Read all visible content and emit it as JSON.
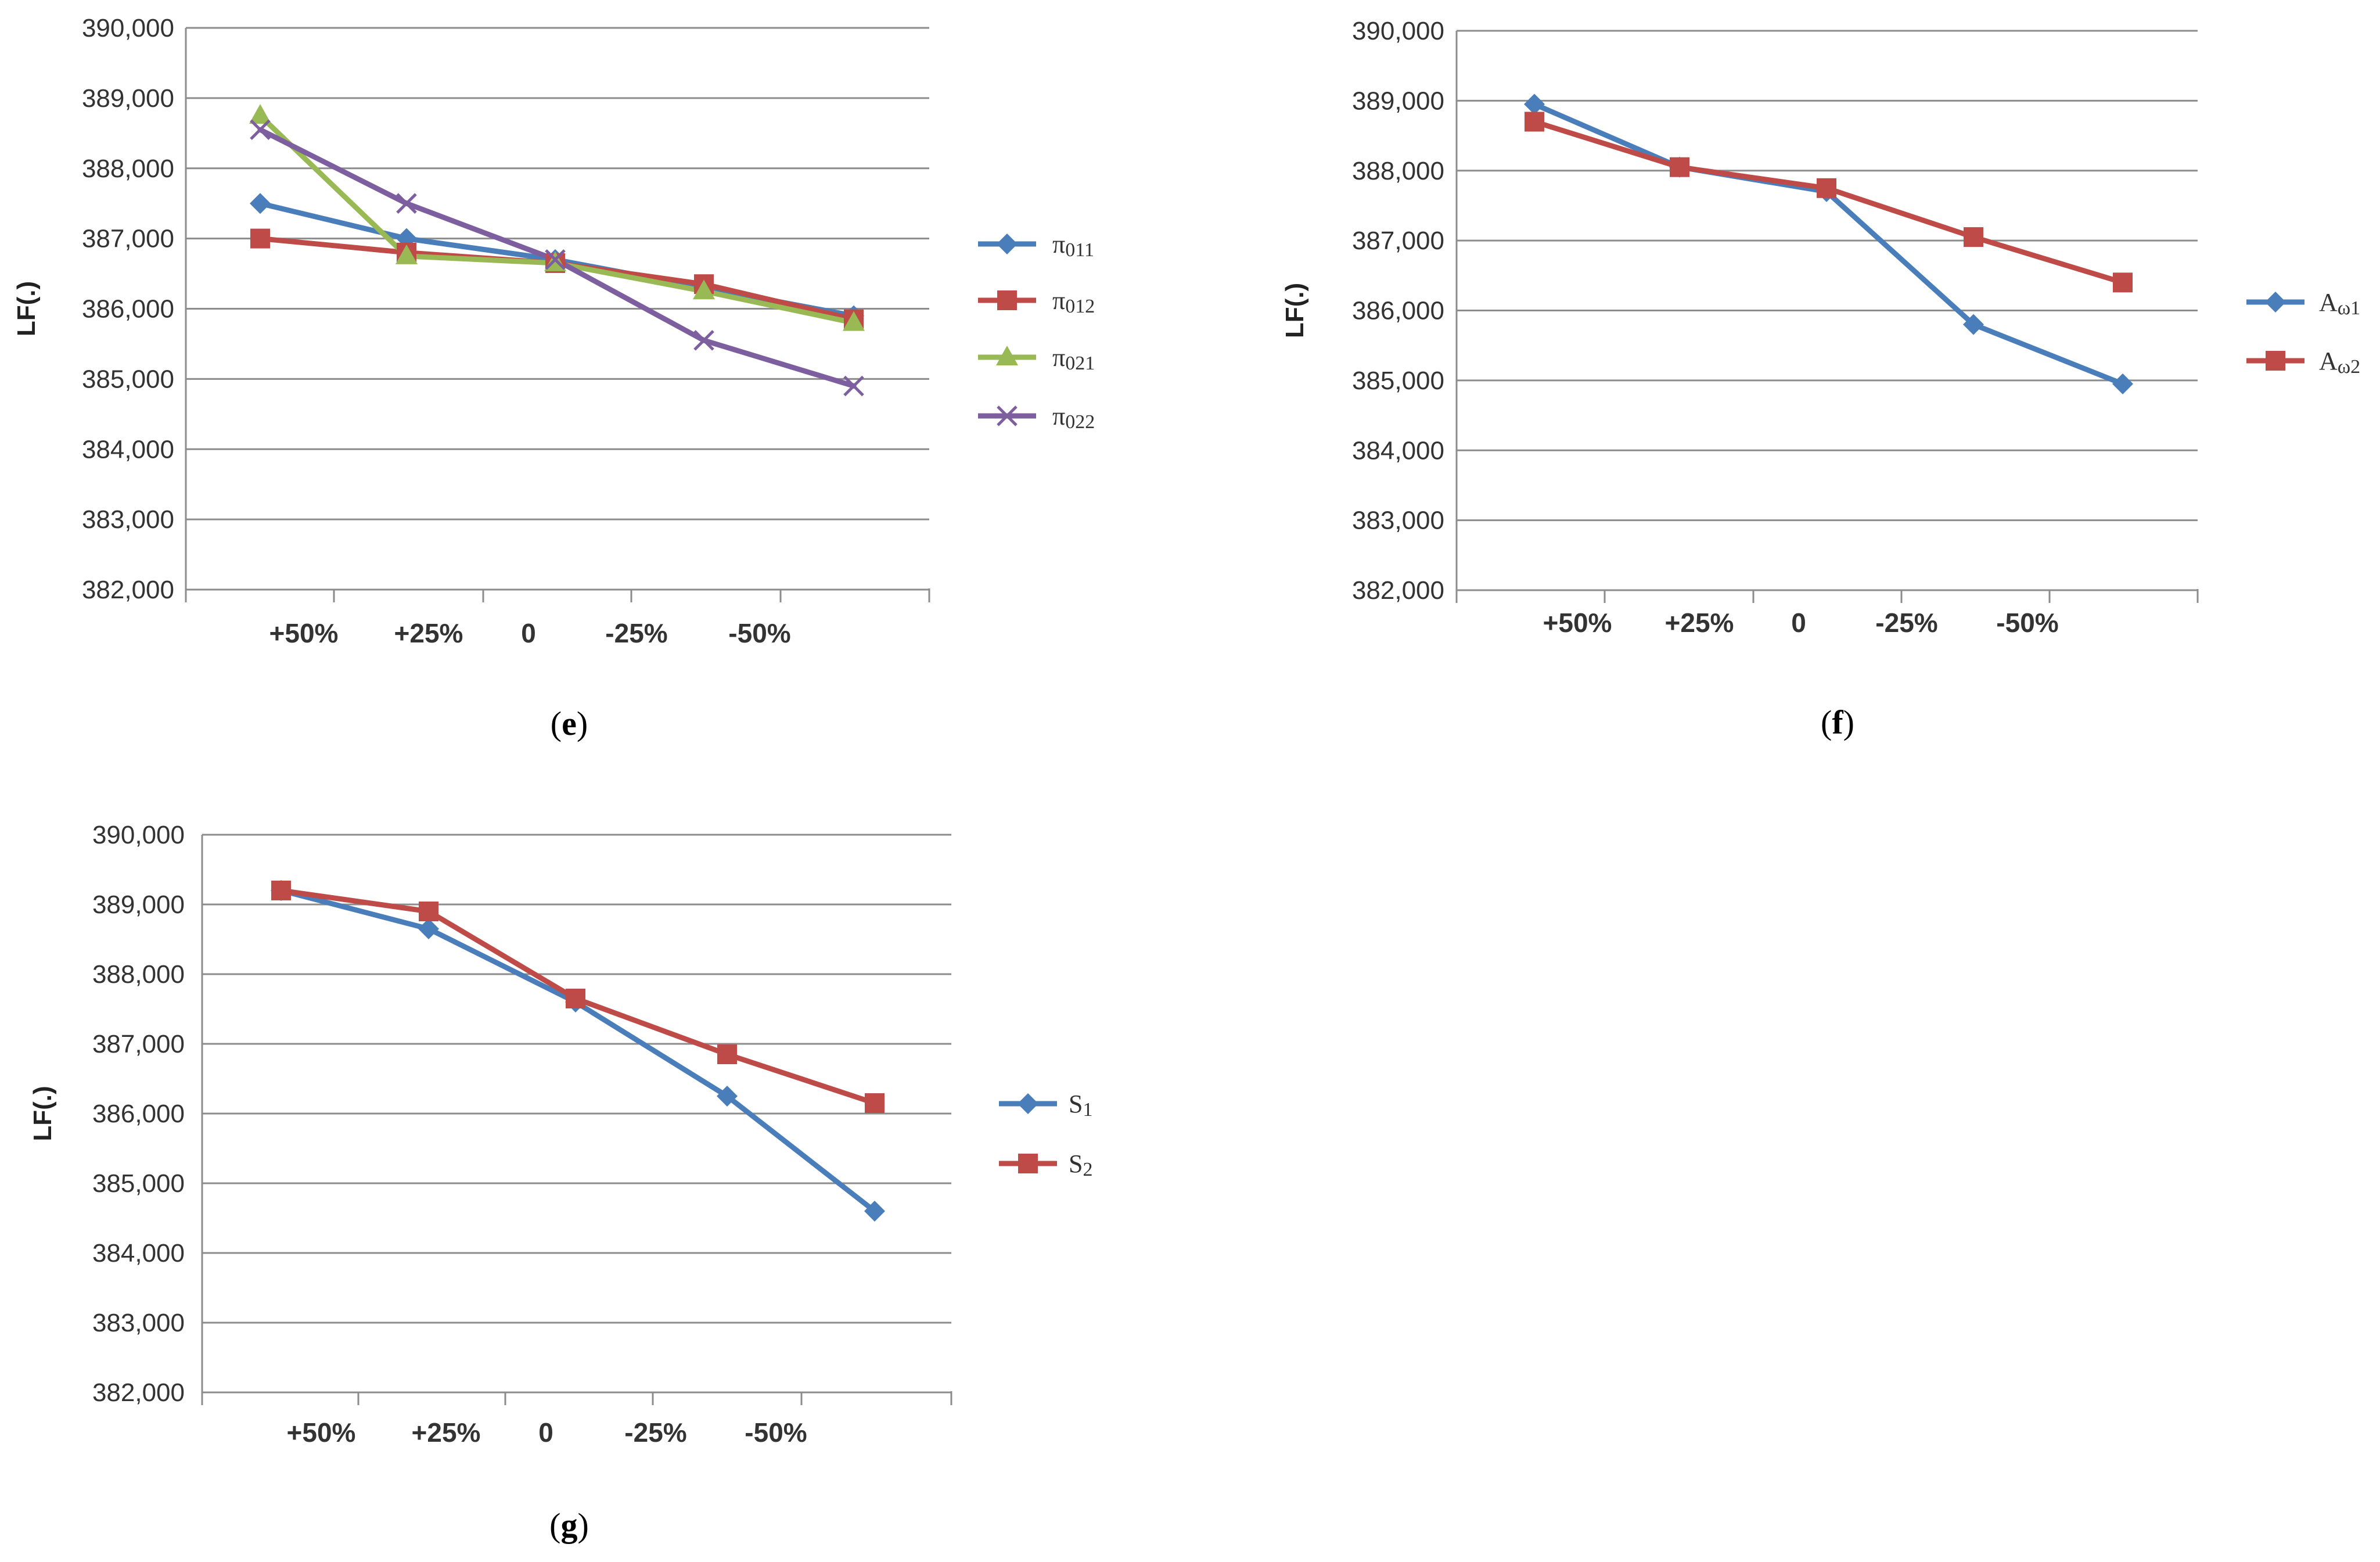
{
  "chart_data": [
    {
      "id": "e",
      "type": "line",
      "caption": "(e)",
      "caption_letter": "e",
      "ylabel": "LF(.)",
      "ylim": [
        382000,
        390000
      ],
      "y_ticks": [
        "382,000",
        "383,000",
        "384,000",
        "385,000",
        "386,000",
        "387,000",
        "388,000",
        "389,000",
        "390,000"
      ],
      "y_tick_values": [
        382000,
        383000,
        384000,
        385000,
        386000,
        387000,
        388000,
        389000,
        390000
      ],
      "x_tick_labels": [
        "+50%",
        "+25%",
        "0",
        "-25%",
        "-50%"
      ],
      "series": [
        {
          "name": "π011",
          "label_main": "π",
          "label_sub": "011",
          "color": "#4a7ebb",
          "marker": "diamond",
          "values": [
            387500,
            387000,
            386700,
            386300,
            385900
          ]
        },
        {
          "name": "π012",
          "label_main": "π",
          "label_sub": "012",
          "color": "#be4b48",
          "marker": "square",
          "values": [
            387000,
            386800,
            386650,
            386350,
            385850
          ]
        },
        {
          "name": "π021",
          "label_main": "π",
          "label_sub": "021",
          "color": "#98b954",
          "marker": "triangle",
          "values": [
            388750,
            386750,
            386650,
            386250,
            385800
          ]
        },
        {
          "name": "π022",
          "label_main": "π",
          "label_sub": "022",
          "color": "#7d5fa0",
          "marker": "x",
          "values": [
            388550,
            387500,
            386700,
            385550,
            384900
          ]
        }
      ]
    },
    {
      "id": "f",
      "type": "line",
      "caption": "(f)",
      "caption_letter": "f",
      "ylabel": "LF(.)",
      "ylim": [
        382000,
        390000
      ],
      "y_ticks": [
        "382,000",
        "383,000",
        "384,000",
        "385,000",
        "386,000",
        "387,000",
        "388,000",
        "389,000",
        "390,000"
      ],
      "y_tick_values": [
        382000,
        383000,
        384000,
        385000,
        386000,
        387000,
        388000,
        389000,
        390000
      ],
      "x_tick_labels": [
        "+50%",
        "+25%",
        "0",
        "-25%",
        "-50%"
      ],
      "series": [
        {
          "name": "Aω1",
          "label_main": "A",
          "label_sub": "ω1",
          "color": "#4a7ebb",
          "marker": "diamond",
          "values": [
            388950,
            388050,
            387700,
            385800,
            384950
          ]
        },
        {
          "name": "Aω2",
          "label_main": "A",
          "label_sub": "ω2",
          "color": "#be4b48",
          "marker": "square",
          "values": [
            388700,
            388050,
            387750,
            387050,
            386400
          ]
        }
      ]
    },
    {
      "id": "g",
      "type": "line",
      "caption": "(g)",
      "caption_letter": "g",
      "ylabel": "LF(.)",
      "ylim": [
        382000,
        390000
      ],
      "y_ticks": [
        "382,000",
        "383,000",
        "384,000",
        "385,000",
        "386,000",
        "387,000",
        "388,000",
        "389,000",
        "390,000"
      ],
      "y_tick_values": [
        382000,
        383000,
        384000,
        385000,
        386000,
        387000,
        388000,
        389000,
        390000
      ],
      "x_tick_labels": [
        "+50%",
        "+25%",
        "0",
        "-25%",
        "-50%"
      ],
      "series": [
        {
          "name": "S1",
          "label_main": "S",
          "label_sub": "1",
          "color": "#4a7ebb",
          "marker": "diamond",
          "values": [
            389200,
            388650,
            387600,
            386250,
            384600
          ]
        },
        {
          "name": "S2",
          "label_main": "S",
          "label_sub": "2",
          "color": "#be4b48",
          "marker": "square",
          "values": [
            389200,
            388900,
            387650,
            386850,
            386150
          ]
        }
      ]
    }
  ]
}
